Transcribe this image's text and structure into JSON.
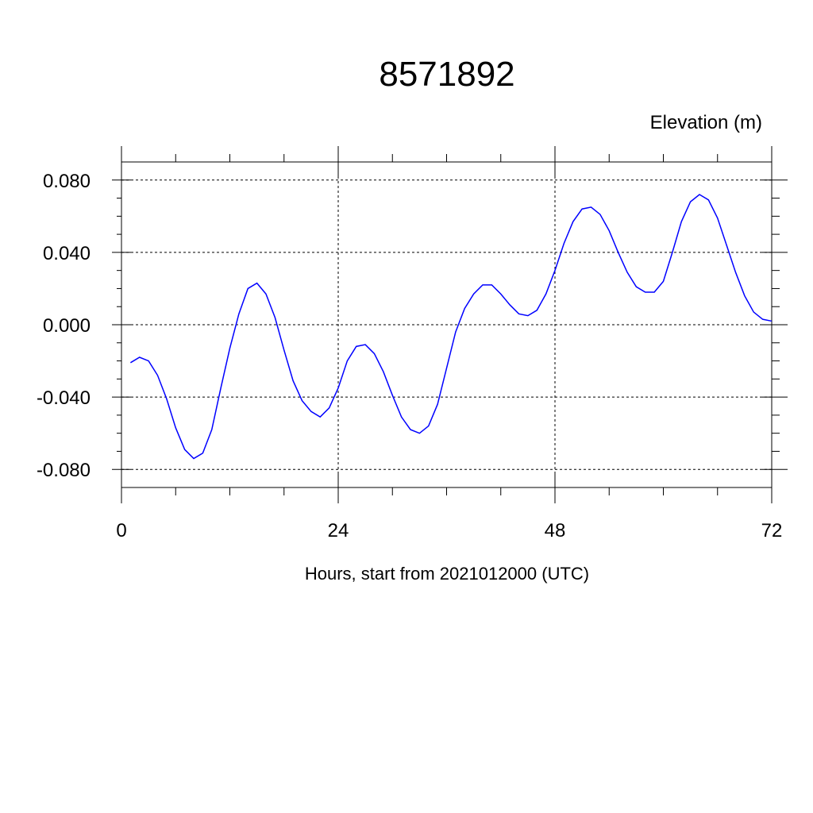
{
  "chart_data": {
    "type": "line",
    "title": "8571892",
    "ylabel": "Elevation (m)",
    "xlabel": "Hours, start from 2021012000 (UTC)",
    "xlim": [
      0,
      72
    ],
    "ylim": [
      -0.09,
      0.09
    ],
    "x_ticks": [
      0,
      24,
      48,
      72
    ],
    "x_tick_labels": [
      "0",
      "24",
      "48",
      "72"
    ],
    "y_ticks": [
      0.08,
      0.04,
      0.0,
      -0.04,
      -0.08
    ],
    "y_tick_labels": [
      "0.080",
      "0.040",
      "0.000",
      "-0.040",
      "-0.080"
    ],
    "grid": true,
    "series": [
      {
        "color": "#0000ff",
        "x": [
          1,
          2,
          3,
          4,
          5,
          6,
          7,
          8,
          9,
          10,
          11,
          12,
          13,
          14,
          15,
          16,
          17,
          18,
          19,
          20,
          21,
          22,
          23,
          24,
          25,
          26,
          27,
          28,
          29,
          30,
          31,
          32,
          33,
          34,
          35,
          36,
          37,
          38,
          39,
          40,
          41,
          42,
          43,
          44,
          45,
          46,
          47,
          48,
          49,
          50,
          51,
          52,
          53,
          54,
          55,
          56,
          57,
          58,
          59,
          60,
          61,
          62,
          63,
          64,
          65,
          66,
          67,
          68,
          69,
          70,
          71,
          72
        ],
        "values": [
          -0.021,
          -0.018,
          -0.02,
          -0.028,
          -0.041,
          -0.057,
          -0.069,
          -0.074,
          -0.071,
          -0.058,
          -0.035,
          -0.013,
          0.006,
          0.02,
          0.023,
          0.017,
          0.004,
          -0.014,
          -0.031,
          -0.042,
          -0.048,
          -0.051,
          -0.046,
          -0.035,
          -0.02,
          -0.012,
          -0.011,
          -0.016,
          -0.026,
          -0.039,
          -0.051,
          -0.058,
          -0.06,
          -0.056,
          -0.044,
          -0.024,
          -0.004,
          0.009,
          0.017,
          0.022,
          0.022,
          0.017,
          0.011,
          0.006,
          0.005,
          0.008,
          0.017,
          0.03,
          0.045,
          0.057,
          0.064,
          0.065,
          0.061,
          0.052,
          0.04,
          0.029,
          0.021,
          0.018,
          0.018,
          0.024,
          0.04,
          0.057,
          0.068,
          0.072,
          0.069,
          0.059,
          0.044,
          0.029,
          0.016,
          0.007,
          0.003,
          0.002
        ]
      }
    ]
  }
}
